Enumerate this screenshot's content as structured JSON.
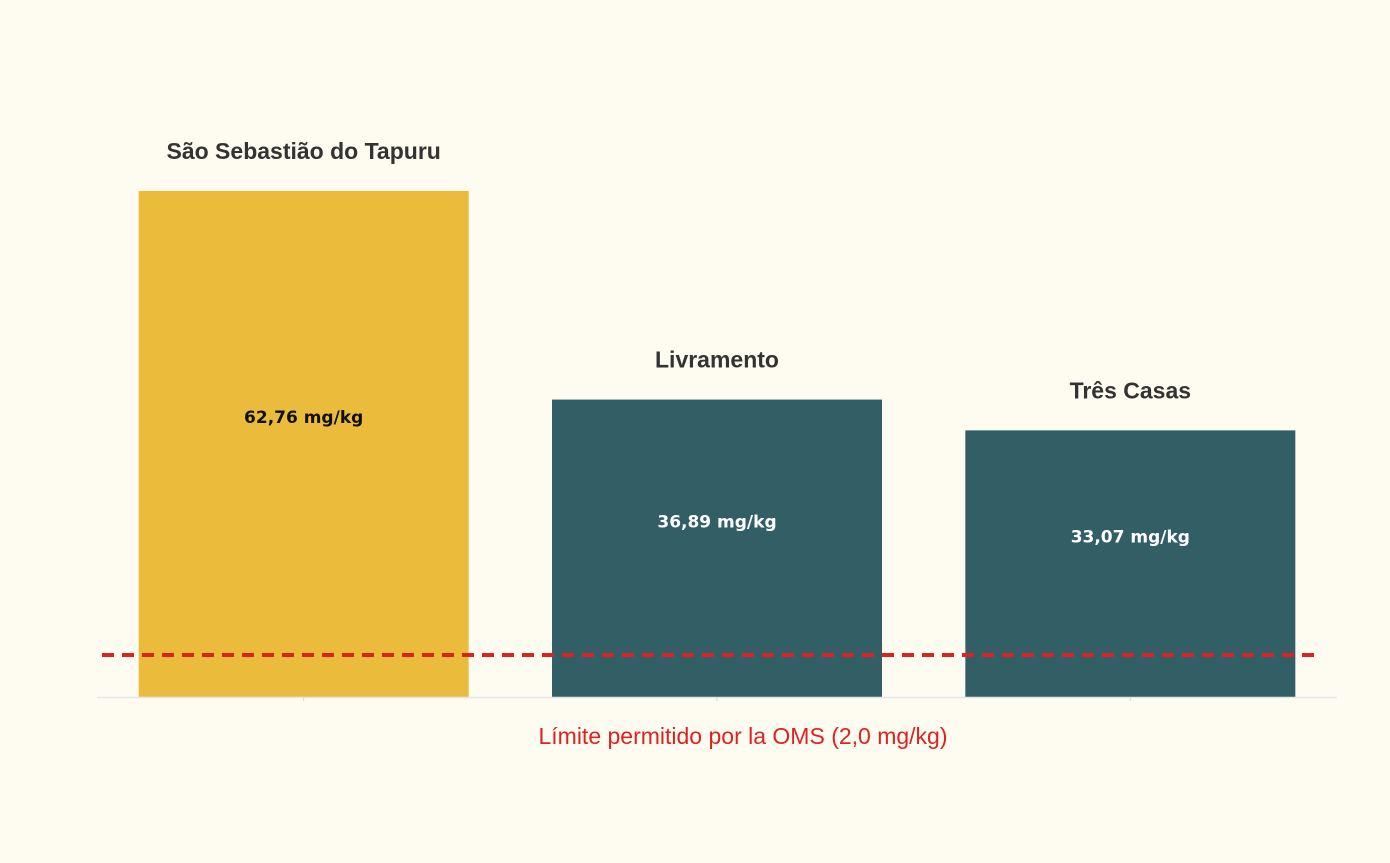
{
  "chart_data": {
    "type": "bar",
    "categories": [
      "São Sebastião do Tapuru",
      "Livramento",
      "Três Casas"
    ],
    "values": [
      62.76,
      36.89,
      33.07
    ],
    "value_labels": [
      "62,76 mg/kg",
      "36,89 mg/kg",
      "33,07 mg/kg"
    ],
    "bar_colors": [
      "#ebbb3b",
      "#325f66",
      "#325f66"
    ],
    "value_label_colors": [
      "#111111",
      "#ffffff",
      "#ffffff"
    ],
    "ylim": [
      0,
      62.76
    ],
    "grid": false,
    "reference_line": {
      "value": 2.0,
      "label": "Límite permitido por la OMS (2,0 mg/kg)",
      "color": "#dd2222",
      "style": "dashed"
    }
  }
}
